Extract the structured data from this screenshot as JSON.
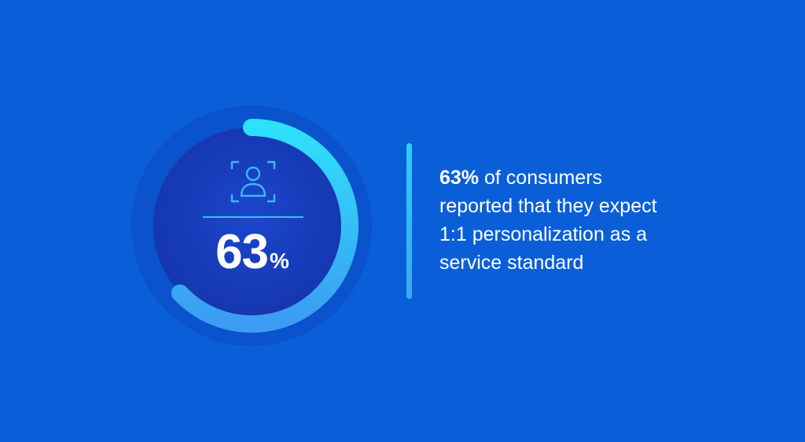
{
  "stat": {
    "value_number": "63",
    "value_symbol": "%",
    "progress_fraction": 0.63,
    "icon": "user-focus-icon",
    "text_bold": "63%",
    "text_line1_rest": " of consumers",
    "text_line2": "reported that they expect",
    "text_line3": "1:1 personalization as a",
    "text_line4": "service standard"
  },
  "colors": {
    "background": "#0a5fd9",
    "ring_start": "#2ee1fb",
    "ring_end": "#3c9cf2",
    "inner_circle_center": "#1a40c2",
    "accent_bar": "#2ecdf7"
  }
}
